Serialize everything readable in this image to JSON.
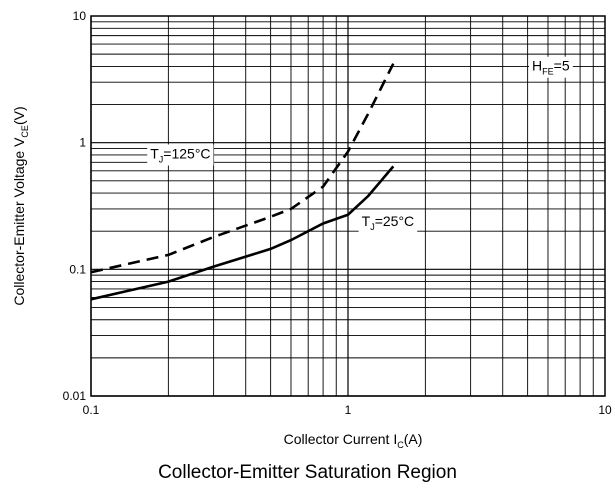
{
  "chart_data": {
    "type": "line",
    "title": "Collector-Emitter Saturation Region",
    "x_scale": "log",
    "y_scale": "log",
    "xlim": [
      0.1,
      10
    ],
    "ylim": [
      0.01,
      10
    ],
    "grid": true,
    "x_ticks": [
      "0.1",
      "1",
      "10"
    ],
    "y_ticks": [
      "10",
      "1",
      "0.1",
      "0.01"
    ],
    "xlabel": {
      "main": "Collector Current I",
      "sub": "C",
      "tail": "(A)"
    },
    "ylabel": {
      "main": "Collector-Emitter Voltage V",
      "sub": "CE",
      "tail": "(V)"
    },
    "series": [
      {
        "name": "TJ=125°C",
        "style": "dashed",
        "x": [
          0.1,
          0.2,
          0.3,
          0.5,
          0.6,
          0.8,
          1.0,
          1.2,
          1.5
        ],
        "y": [
          0.095,
          0.13,
          0.18,
          0.26,
          0.3,
          0.45,
          0.85,
          1.7,
          4.2
        ]
      },
      {
        "name": "TJ=25°C",
        "style": "solid",
        "x": [
          0.1,
          0.2,
          0.3,
          0.5,
          0.6,
          0.8,
          1.0,
          1.2,
          1.5
        ],
        "y": [
          0.058,
          0.08,
          0.105,
          0.145,
          0.17,
          0.23,
          0.27,
          0.38,
          0.65
        ]
      }
    ],
    "annotations": [
      {
        "main": "T",
        "sub": "J",
        "tail": "=125°C",
        "at": [
          0.17,
          0.75
        ]
      },
      {
        "main": "T",
        "sub": "J",
        "tail": "=25°C",
        "at": [
          1.13,
          0.22
        ]
      },
      {
        "main": "H",
        "sub": "FE",
        "tail": "=5",
        "at": [
          5.2,
          3.7
        ]
      }
    ]
  }
}
